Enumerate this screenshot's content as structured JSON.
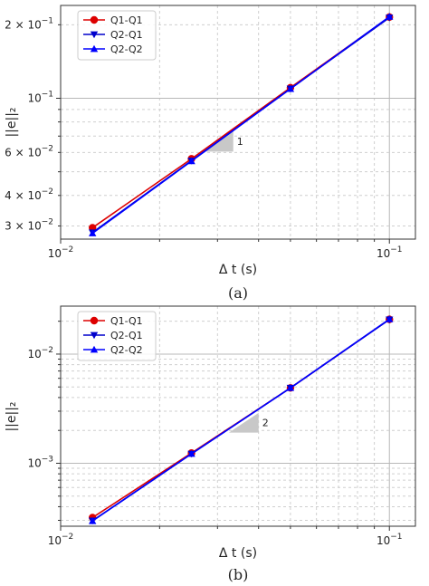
{
  "chart_data": [
    {
      "type": "line",
      "panel_caption": "(a)",
      "xlabel": "Δ t (s)",
      "ylabel": "||e||₂",
      "xscale": "log",
      "yscale": "log",
      "xlim": [
        0.01,
        0.12
      ],
      "ylim": [
        0.0265,
        0.24
      ],
      "grid": true,
      "legend_position": "top-left",
      "x": [
        0.0125,
        0.025,
        0.05,
        0.1
      ],
      "series": [
        {
          "name": "Q1-Q1",
          "values": [
            0.0295,
            0.0565,
            0.1105,
            0.215
          ],
          "color": "#dd0000",
          "marker": "circle"
        },
        {
          "name": "Q2-Q1",
          "values": [
            0.0282,
            0.0555,
            0.1095,
            0.214
          ],
          "color": "#0000cc",
          "marker": "triangle-down"
        },
        {
          "name": "Q2-Q2",
          "values": [
            0.028,
            0.0553,
            0.1093,
            0.216
          ],
          "color": "#0000ff",
          "marker": "triangle-up"
        }
      ],
      "xticks": [
        {
          "v": 0.01,
          "base": "10",
          "exp": "−2"
        },
        {
          "v": 0.1,
          "base": "10",
          "exp": "−1"
        }
      ],
      "yticks": [
        {
          "v": 0.03,
          "label": "3 × 10",
          "exp": "−2"
        },
        {
          "v": 0.04,
          "label": "4 × 10",
          "exp": "−2"
        },
        {
          "v": 0.06,
          "label": "6 × 10",
          "exp": "−2"
        },
        {
          "v": 0.1,
          "label": "10",
          "exp": "−1"
        },
        {
          "v": 0.2,
          "label": "2 × 10",
          "exp": "−1"
        }
      ],
      "slope_triangle": {
        "label": "1",
        "x0": 0.0275,
        "x1": 0.0335,
        "y0": 0.0605
      }
    },
    {
      "type": "line",
      "panel_caption": "(b)",
      "xlabel": "Δ t (s)",
      "ylabel": "||e||₂",
      "xscale": "log",
      "yscale": "log",
      "xlim": [
        0.01,
        0.12
      ],
      "ylim": [
        0.000265,
        0.0275
      ],
      "grid": true,
      "legend_position": "top-left",
      "x": [
        0.0125,
        0.025,
        0.05,
        0.1
      ],
      "series": [
        {
          "name": "Q1-Q1",
          "values": [
            0.000318,
            0.00124,
            0.0049,
            0.0208
          ],
          "color": "#dd0000",
          "marker": "circle"
        },
        {
          "name": "Q2-Q1",
          "values": [
            0.000298,
            0.00122,
            0.0049,
            0.0207
          ],
          "color": "#0000cc",
          "marker": "triangle-down"
        },
        {
          "name": "Q2-Q2",
          "values": [
            0.000296,
            0.00122,
            0.0049,
            0.0209
          ],
          "color": "#0000ff",
          "marker": "triangle-up"
        }
      ],
      "xticks": [
        {
          "v": 0.01,
          "base": "10",
          "exp": "−2"
        },
        {
          "v": 0.1,
          "base": "10",
          "exp": "−1"
        }
      ],
      "yticks": [
        {
          "v": 0.001,
          "label": "10",
          "exp": "−3"
        },
        {
          "v": 0.01,
          "label": "10",
          "exp": "−2"
        }
      ],
      "slope_triangle": {
        "label": "2",
        "x0": 0.0325,
        "x1": 0.04,
        "y0": 0.00191
      }
    }
  ]
}
